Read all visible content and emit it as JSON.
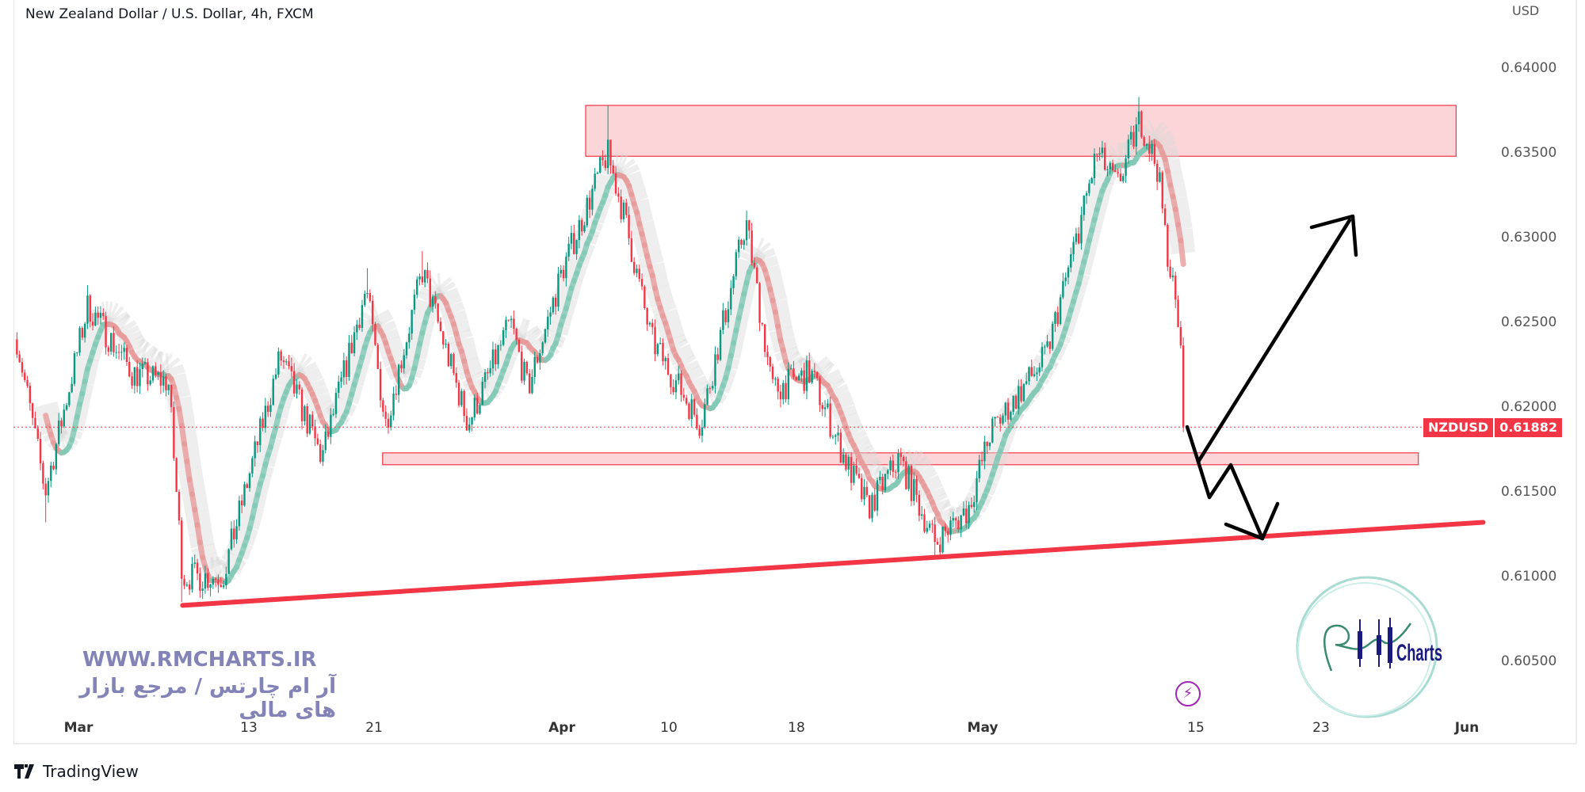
{
  "header": {
    "title": "New Zealand Dollar / U.S. Dollar, 4h, FXCM",
    "currency": "USD"
  },
  "price_tag": {
    "symbol": "NZDUSD",
    "value": "0.61882"
  },
  "watermark": {
    "url": "WWW.RMCHARTS.IR",
    "tagline": "آر ام چارتس / مرجع بازار های مالی",
    "logo_text": "Charts"
  },
  "footer": {
    "brand": "TradingView"
  },
  "icons": {
    "alert": "lightning-icon",
    "brand": "tradingview-logo-icon"
  },
  "colors": {
    "up": "#089981",
    "down": "#f23645",
    "zone_fill": "#fbd5d8",
    "zone_border": "#f23645",
    "trendline": "#f23645",
    "arrows": "#000000",
    "ma_up": "#7fc8b4",
    "ma_down": "#e79a9a",
    "band": "#d9d9d9"
  },
  "chart_data": {
    "type": "candlestick",
    "symbol": "NZDUSD",
    "timeframe": "4h",
    "ylim": [
      0.6025,
      0.6425
    ],
    "y_ticks": [
      "0.64000",
      "0.63500",
      "0.63000",
      "0.62500",
      "0.62000",
      "0.61500",
      "0.61000",
      "0.60500"
    ],
    "x_ticks": [
      {
        "date": "2023-03-01",
        "label": "Mar",
        "bold": true
      },
      {
        "date": "2023-03-13",
        "label": "13"
      },
      {
        "date": "2023-03-21",
        "label": "21"
      },
      {
        "date": "2023-04-01",
        "label": "Apr",
        "bold": true
      },
      {
        "date": "2023-04-10",
        "label": "10"
      },
      {
        "date": "2023-04-18",
        "label": "18"
      },
      {
        "date": "2023-05-01",
        "label": "May",
        "bold": true
      },
      {
        "date": "2023-05-15",
        "label": "15"
      },
      {
        "date": "2023-05-23",
        "label": "23"
      },
      {
        "date": "2023-06-01",
        "label": "Jun",
        "bold": true
      }
    ],
    "price_path": [
      {
        "t": "2023-02-24T16:00",
        "p": 0.624
      },
      {
        "t": "2023-02-26T16:00",
        "p": 0.615,
        "low": 0.6132
      },
      {
        "t": "2023-03-01T16:00",
        "p": 0.626,
        "high": 0.6272
      },
      {
        "t": "2023-03-04T20:00",
        "p": 0.622
      },
      {
        "t": "2023-03-07T08:00",
        "p": 0.6215
      },
      {
        "t": "2023-03-08T08:00",
        "p": 0.61,
        "low": 0.6085
      },
      {
        "t": "2023-03-11T04:00",
        "p": 0.61
      },
      {
        "t": "2023-03-15T00:00",
        "p": 0.623
      },
      {
        "t": "2023-03-17T16:00",
        "p": 0.617
      },
      {
        "t": "2023-03-20T12:00",
        "p": 0.627,
        "high": 0.6282
      },
      {
        "t": "2023-03-21T16:00",
        "p": 0.619
      },
      {
        "t": "2023-03-23T20:00",
        "p": 0.628,
        "high": 0.6292
      },
      {
        "t": "2023-03-26T12:00",
        "p": 0.619
      },
      {
        "t": "2023-03-29T00:00",
        "p": 0.625
      },
      {
        "t": "2023-03-30T00:00",
        "p": 0.621
      },
      {
        "t": "2023-04-01T00:00",
        "p": 0.628
      },
      {
        "t": "2023-04-04T20:00",
        "p": 0.635,
        "high": 0.6378
      },
      {
        "t": "2023-04-06T08:00",
        "p": 0.631
      },
      {
        "t": "2023-04-08T12:00",
        "p": 0.624
      },
      {
        "t": "2023-04-12T00:00",
        "p": 0.619
      },
      {
        "t": "2023-04-14T20:00",
        "p": 0.631,
        "high": 0.6316
      },
      {
        "t": "2023-04-16T12:00",
        "p": 0.621
      },
      {
        "t": "2023-04-19T00:00",
        "p": 0.622
      },
      {
        "t": "2023-04-21T08:00",
        "p": 0.617
      },
      {
        "t": "2023-04-23T00:00",
        "p": 0.614
      },
      {
        "t": "2023-04-25T04:00",
        "p": 0.617
      },
      {
        "t": "2023-04-27T16:00",
        "p": 0.612,
        "low": 0.6112
      },
      {
        "t": "2023-04-30T00:00",
        "p": 0.614
      },
      {
        "t": "2023-05-01T12:00",
        "p": 0.6185
      },
      {
        "t": "2023-05-05T04:00",
        "p": 0.623
      },
      {
        "t": "2023-05-07T04:00",
        "p": 0.63
      },
      {
        "t": "2023-05-08T12:00",
        "p": 0.635
      },
      {
        "t": "2023-05-09T20:00",
        "p": 0.633
      },
      {
        "t": "2023-05-11T08:00",
        "p": 0.637,
        "high": 0.6383
      },
      {
        "t": "2023-05-12T12:00",
        "p": 0.634
      },
      {
        "t": "2023-05-13T00:00",
        "p": 0.63
      },
      {
        "t": "2023-05-13T20:00",
        "p": 0.625
      },
      {
        "t": "2023-05-14T08:00",
        "p": 0.61882
      }
    ],
    "last_price": 0.61882,
    "annotations": {
      "zones": [
        {
          "from": "2023-04-03T00:00",
          "to": "2023-05-31T08:00",
          "low": 0.6348,
          "high": 0.6378
        },
        {
          "from": "2023-03-21T12:00",
          "to": "2023-05-29T00:00",
          "low": 0.6166,
          "high": 0.6173
        }
      ],
      "trendline": {
        "from": {
          "t": "2023-03-08T08:00",
          "p": 0.6083
        },
        "to": {
          "t": "2023-06-02T00:00",
          "p": 0.6132
        }
      }
    }
  }
}
